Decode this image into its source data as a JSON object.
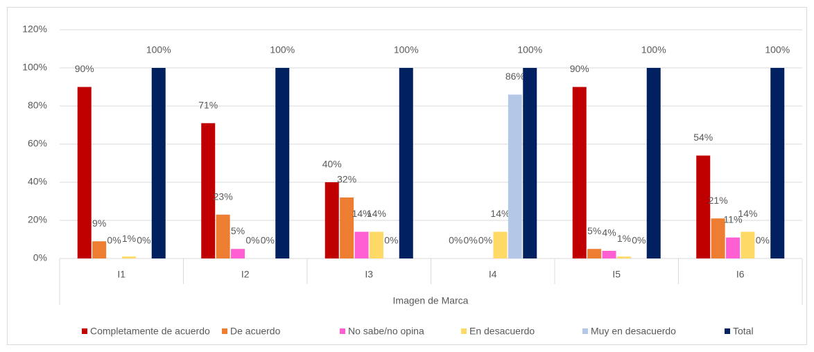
{
  "chart_data": {
    "type": "bar",
    "x_label": "Imagen de Marca",
    "categories": [
      "I1",
      "I2",
      "I3",
      "I4",
      "I5",
      "I6"
    ],
    "series": [
      {
        "name": "Completamente de acuerdo",
        "color": "#c00000",
        "values": [
          90,
          71,
          40,
          0,
          90,
          54
        ],
        "value_labels": [
          "90%",
          "71%",
          "40%",
          "0%",
          "90%",
          "54%"
        ]
      },
      {
        "name": "De acuerdo",
        "color": "#ed7d31",
        "values": [
          9,
          23,
          32,
          0,
          5,
          21
        ],
        "value_labels": [
          "9%",
          "23%",
          "32%",
          "0%",
          "5%",
          "21%"
        ]
      },
      {
        "name": "No sabe/no opina",
        "color": "#ff5fd2",
        "values": [
          0,
          5,
          14,
          0,
          4,
          11
        ],
        "value_labels": [
          "0%",
          "5%",
          "14%",
          "0%",
          "4%",
          "11%"
        ]
      },
      {
        "name": "En desacuerdo",
        "color": "#ffd966",
        "values": [
          1,
          0,
          14,
          14,
          1,
          14
        ],
        "value_labels": [
          "1%",
          "0%",
          "14%",
          "14%",
          "1%",
          "14%"
        ]
      },
      {
        "name": "Muy en desacuerdo",
        "color": "#b4c7e7",
        "values": [
          0,
          0,
          0,
          86,
          0,
          0
        ],
        "value_labels": [
          "0%",
          "0%",
          "0%",
          "86%",
          "0%",
          "0%"
        ]
      },
      {
        "name": "Total",
        "color": "#002060",
        "values": [
          100,
          100,
          100,
          100,
          100,
          100
        ],
        "value_labels": [
          "100%",
          "100%",
          "100%",
          "100%",
          "100%",
          "100%"
        ]
      }
    ],
    "ylim": [
      0,
      120
    ],
    "yticks": [
      {
        "value": 0,
        "label": "0%"
      },
      {
        "value": 20,
        "label": "20%"
      },
      {
        "value": 40,
        "label": "40%"
      },
      {
        "value": 60,
        "label": "60%"
      },
      {
        "value": 80,
        "label": "80%"
      },
      {
        "value": 100,
        "label": "100%"
      },
      {
        "value": 120,
        "label": "120%"
      }
    ],
    "grid": true,
    "legend": "bottom"
  }
}
